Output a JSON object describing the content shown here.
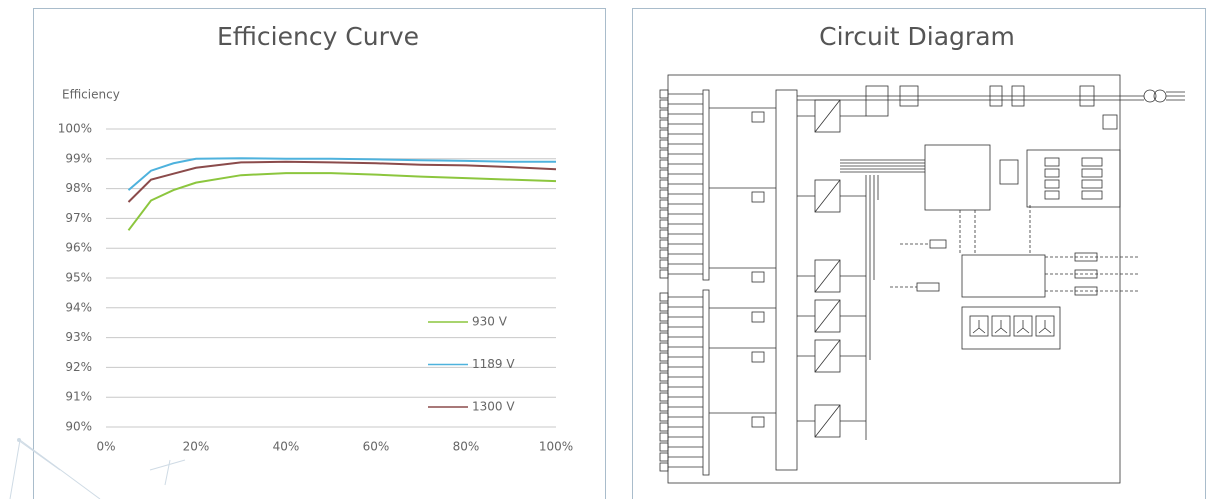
{
  "chart_data": {
    "type": "line",
    "title": "Efficiency Curve",
    "y_label": "Efficiency",
    "x": [
      5,
      10,
      15,
      20,
      30,
      40,
      50,
      60,
      70,
      80,
      90,
      100
    ],
    "series": [
      {
        "name": "930 V",
        "color": "#8cc63e",
        "values": [
          96.6,
          97.6,
          97.95,
          98.2,
          98.45,
          98.52,
          98.52,
          98.47,
          98.4,
          98.35,
          98.3,
          98.25
        ]
      },
      {
        "name": "1189 V",
        "color": "#4eb2dd",
        "values": [
          97.95,
          98.6,
          98.85,
          99.0,
          99.02,
          99.0,
          99.0,
          98.98,
          98.95,
          98.93,
          98.9,
          98.9
        ]
      },
      {
        "name": "1300 V",
        "color": "#8b4b4b",
        "values": [
          97.55,
          98.3,
          98.5,
          98.7,
          98.88,
          98.9,
          98.88,
          98.85,
          98.8,
          98.78,
          98.72,
          98.65
        ]
      }
    ],
    "xlim": [
      0,
      100
    ],
    "xticks": [
      {
        "value": 0,
        "label": "0%"
      },
      {
        "value": 20,
        "label": "20%"
      },
      {
        "value": 40,
        "label": "40%"
      },
      {
        "value": 60,
        "label": "60%"
      },
      {
        "value": 80,
        "label": "80%"
      },
      {
        "value": 100,
        "label": "100%"
      }
    ],
    "ylim": [
      90,
      100
    ],
    "yticks": [
      {
        "value": 90,
        "label": "90%"
      },
      {
        "value": 91,
        "label": "91%"
      },
      {
        "value": 92,
        "label": "92%"
      },
      {
        "value": 93,
        "label": "93%"
      },
      {
        "value": 94,
        "label": "94%"
      },
      {
        "value": 95,
        "label": "95%"
      },
      {
        "value": 96,
        "label": "96%"
      },
      {
        "value": 97,
        "label": "97%"
      },
      {
        "value": 98,
        "label": "98%"
      },
      {
        "value": 99,
        "label": "99%"
      },
      {
        "value": 100,
        "label": "100%"
      }
    ],
    "grid": true,
    "legend": "lower right"
  },
  "diagram": {
    "title": "Circuit Diagram"
  }
}
